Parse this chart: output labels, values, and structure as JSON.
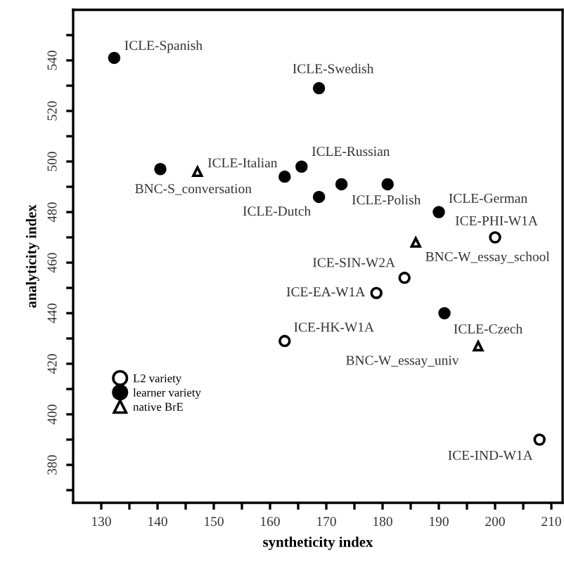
{
  "chart_data": {
    "type": "scatter",
    "xlabel": "syntheticity index",
    "ylabel": "analyticity index",
    "xlim": [
      125,
      212
    ],
    "ylim": [
      365,
      560
    ],
    "xticks": [
      130,
      {
        "value": 135,
        "label": null
      },
      140,
      {
        "value": 145,
        "label": null
      },
      150,
      {
        "value": 155,
        "label": null
      },
      160,
      {
        "value": 165,
        "label": null
      },
      170,
      {
        "value": 175,
        "label": null
      },
      180,
      {
        "value": 185,
        "label": null
      },
      190,
      {
        "value": 195,
        "label": null
      },
      200,
      {
        "value": 205,
        "label": null
      },
      210
    ],
    "yticks": [
      {
        "value": 370,
        "label": null
      },
      380,
      {
        "value": 390,
        "label": null
      },
      400,
      {
        "value": 410,
        "label": null
      },
      420,
      {
        "value": 430,
        "label": null
      },
      440,
      {
        "value": 450,
        "label": null
      },
      460,
      {
        "value": 470,
        "label": null
      },
      480,
      {
        "value": 490,
        "label": null
      },
      500,
      {
        "value": 510,
        "label": null
      },
      520,
      {
        "value": 530,
        "label": null
      },
      540,
      {
        "value": 550,
        "label": null
      }
    ],
    "grid": false,
    "legend": "bottom left",
    "series": [
      {
        "name": "L2 variety",
        "color": "#ffffff",
        "marker": "circle",
        "x": [
          200,
          183.9,
          178.9,
          162.6,
          207.9
        ],
        "values": [
          470,
          454,
          448,
          429,
          390
        ]
      },
      {
        "name": "learner variety",
        "color": "#000000",
        "marker": "circle",
        "x": [
          132.3,
          140.5,
          162.6,
          165.6,
          168.7,
          168.7,
          172.7,
          180.9,
          190,
          191
        ],
        "values": [
          541,
          497,
          494,
          498,
          529,
          486,
          491,
          491,
          480,
          440
        ]
      },
      {
        "name": "native BrE",
        "color": "#ffffff",
        "marker": "triangle",
        "x": [
          147.1,
          185.9,
          197
        ],
        "values": [
          496,
          468,
          427
        ]
      }
    ],
    "annotations": [
      {
        "text": "ICLE-Spanish",
        "x": 132.3,
        "y": 541
      },
      {
        "text": "ICLE-Swedish",
        "x": 168.7,
        "y": 529
      },
      {
        "text": "ICLE-Russian",
        "x": 165.6,
        "y": 498
      },
      {
        "text": "ICLE-Italian",
        "x": 162.6,
        "y": 494
      },
      {
        "text": "BNC-S_conversation",
        "x": 147.1,
        "y": 496
      },
      {
        "text": "ICLE-Dutch",
        "x": 168.7,
        "y": 486
      },
      {
        "text": "ICLE-Polish",
        "x": 180.9,
        "y": 491
      },
      {
        "text": "ICLE-German",
        "x": 190,
        "y": 480
      },
      {
        "text": "ICE-PHI-W1A",
        "x": 200,
        "y": 470
      },
      {
        "text": "BNC-W_essay_school",
        "x": 185.9,
        "y": 468
      },
      {
        "text": "ICE-SIN-W2A",
        "x": 183.9,
        "y": 454
      },
      {
        "text": "ICE-EA-W1A",
        "x": 178.9,
        "y": 448
      },
      {
        "text": "ICE-HK-W1A",
        "x": 162.6,
        "y": 429
      },
      {
        "text": "ICLE-Czech",
        "x": 191,
        "y": 440
      },
      {
        "text": "BNC-W_essay_univ",
        "x": 197,
        "y": 427
      },
      {
        "text": "ICE-IND-W1A",
        "x": 207.9,
        "y": 390
      }
    ]
  }
}
